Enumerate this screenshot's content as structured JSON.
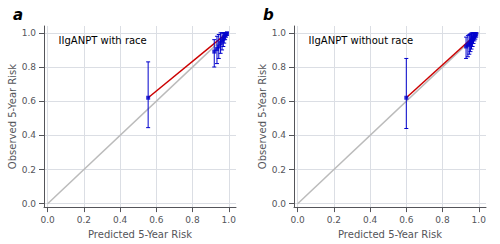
{
  "chart_data": [
    {
      "type": "scatter",
      "title": "IIgANPT with race",
      "annotations": [
        "a"
      ],
      "xlabel": "Predicted 5-Year Risk",
      "ylabel": "Observed 5-Year Risk",
      "xlim": [
        -0.02,
        1.04
      ],
      "ylim": [
        -0.02,
        1.04
      ],
      "xticks": [
        {
          "value": 0.0,
          "label": "0.0"
        },
        0.2,
        0.4,
        0.6,
        0.8,
        {
          "value": 1.0,
          "label": "1.0"
        }
      ],
      "yticks": [
        {
          "value": 0.0,
          "label": "0.0"
        },
        0.2,
        0.4,
        0.6,
        0.8,
        {
          "value": 1.0,
          "label": "1.0"
        }
      ],
      "grid": true,
      "series": [
        {
          "type": "line",
          "color": "#BBBBBB",
          "line_style": "solid",
          "x": [
            0,
            1
          ],
          "values": [
            0,
            1
          ]
        },
        {
          "type": "line",
          "color": "#CC0000",
          "line_style": "solid",
          "x": [
            0.555,
            0.99
          ],
          "values": [
            0.62,
            0.998
          ]
        },
        {
          "type": "scatter",
          "color": "#0000CC",
          "marker": "square",
          "x": [
            0.555,
            0.92,
            0.935,
            0.945,
            0.955,
            0.963,
            0.97,
            0.975,
            0.98,
            0.985,
            0.99
          ],
          "values": [
            0.62,
            0.89,
            0.905,
            0.92,
            0.94,
            0.955,
            0.965,
            0.975,
            0.985,
            0.993,
            0.998
          ],
          "ylo": [
            0.445,
            0.8,
            0.82,
            0.85,
            0.88,
            0.9,
            0.92,
            0.94,
            0.96,
            0.975,
            0.985
          ],
          "yhi": [
            0.83,
            0.96,
            0.98,
            0.99,
            1.0,
            1.0,
            1.0,
            1.0,
            1.0,
            1.0,
            1.0
          ]
        }
      ]
    },
    {
      "type": "scatter",
      "title": "IIgANPT without race",
      "annotations": [
        "b"
      ],
      "xlabel": "Predicted 5-Year Risk",
      "ylabel": "Observed 5-Year Risk",
      "xlim": [
        -0.02,
        1.04
      ],
      "ylim": [
        -0.02,
        1.04
      ],
      "xticks": [
        {
          "value": 0.0,
          "label": "0.0"
        },
        0.2,
        0.4,
        0.6,
        0.8,
        {
          "value": 1.0,
          "label": "1.0"
        }
      ],
      "yticks": [
        {
          "value": 0.0,
          "label": "0.0"
        },
        0.2,
        0.4,
        0.6,
        0.8,
        {
          "value": 1.0,
          "label": "1.0"
        }
      ],
      "grid": true,
      "series": [
        {
          "type": "line",
          "color": "#BBBBBB",
          "line_style": "solid",
          "x": [
            0,
            1
          ],
          "values": [
            0,
            1
          ]
        },
        {
          "type": "line",
          "color": "#CC0000",
          "line_style": "solid",
          "x": [
            0.6,
            0.986
          ],
          "values": [
            0.62,
            0.992
          ]
        },
        {
          "type": "scatter",
          "color": "#0000CC",
          "marker": "square",
          "x": [
            0.6,
            0.93,
            0.94,
            0.948,
            0.954,
            0.96,
            0.966,
            0.971,
            0.976,
            0.981,
            0.986
          ],
          "values": [
            0.62,
            0.92,
            0.928,
            0.935,
            0.942,
            0.95,
            0.96,
            0.97,
            0.978,
            0.985,
            0.992
          ],
          "ylo": [
            0.44,
            0.85,
            0.86,
            0.875,
            0.89,
            0.905,
            0.92,
            0.938,
            0.953,
            0.963,
            0.975
          ],
          "yhi": [
            0.85,
            0.975,
            0.985,
            0.99,
            0.995,
            1.0,
            1.0,
            1.0,
            1.0,
            1.0,
            1.0
          ]
        }
      ]
    }
  ]
}
